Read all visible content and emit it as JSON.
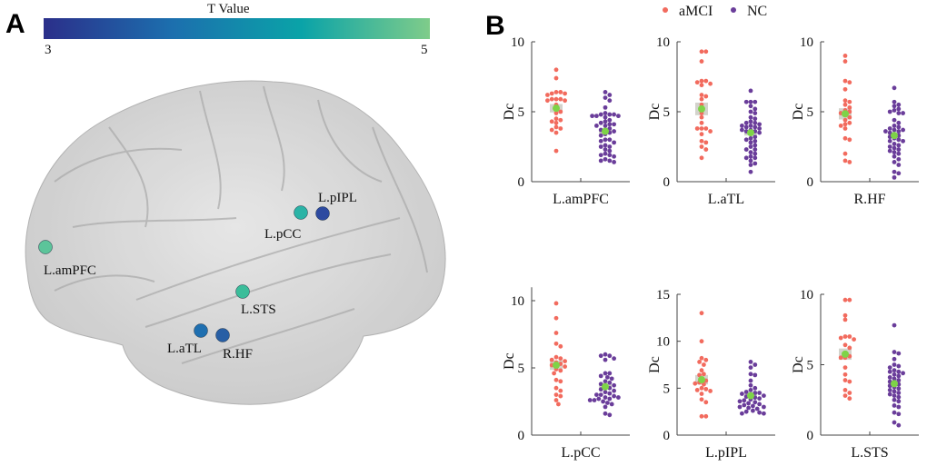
{
  "panel_a": {
    "label": "A",
    "colorbar": {
      "title": "T Value",
      "min_label": "3",
      "max_label": "5",
      "colors": [
        "#2b2f8a",
        "#1c6fae",
        "#0aa3a8",
        "#7fcc8a"
      ]
    },
    "nodes": [
      {
        "name": "L.amPFC",
        "t": 4.6,
        "color": "#5cc49a"
      },
      {
        "name": "L.pCC",
        "t": 4.4,
        "color": "#2bb3a6"
      },
      {
        "name": "L.pIPL",
        "t": 3.3,
        "color": "#2d4aa0"
      },
      {
        "name": "L.STS",
        "t": 4.5,
        "color": "#3bbd9a"
      },
      {
        "name": "L.aTL",
        "t": 3.7,
        "color": "#1f6fb0"
      },
      {
        "name": "R.HF",
        "t": 3.6,
        "color": "#285fa5"
      }
    ]
  },
  "panel_b": {
    "label": "B"
  },
  "chart_data": {
    "type": "scatter",
    "legend": {
      "placement": "top",
      "entries": [
        {
          "name": "aMCI",
          "color": "#f26b5e"
        },
        {
          "name": "NC",
          "color": "#6a3d9a"
        }
      ]
    },
    "mean_color": "#7ed348",
    "se_color": "#d3d3cc",
    "ylabel": "Dc",
    "panels": [
      {
        "xlabel": "L.amPFC",
        "ylim": [
          0,
          10
        ],
        "yticks": [
          0,
          5,
          10
        ],
        "aMCI": {
          "mean": 5.25,
          "se": 0.3,
          "values": [
            8.0,
            7.4,
            6.4,
            6.4,
            6.3,
            6.3,
            6.2,
            5.9,
            5.9,
            5.9,
            5.8,
            5.8,
            5.5,
            5.2,
            5.0,
            4.9,
            4.5,
            4.4,
            4.3,
            4.2,
            3.9,
            3.8,
            3.7,
            3.5,
            2.2
          ]
        },
        "NC": {
          "mean": 3.6,
          "se": 0.2,
          "values": [
            6.4,
            6.2,
            6.0,
            5.8,
            5.3,
            4.9,
            4.8,
            4.8,
            4.8,
            4.7,
            4.7,
            4.7,
            4.6,
            4.4,
            4.3,
            4.2,
            4.1,
            4.1,
            4.0,
            4.0,
            3.8,
            3.7,
            3.7,
            3.6,
            3.5,
            3.4,
            3.3,
            3.0,
            3.0,
            2.9,
            2.8,
            2.6,
            2.5,
            2.5,
            2.3,
            2.2,
            2.0,
            1.9,
            1.9,
            1.8,
            1.6,
            1.5,
            1.5,
            1.4
          ]
        }
      },
      {
        "xlabel": "L.aTL",
        "ylim": [
          0,
          10
        ],
        "yticks": [
          0,
          5,
          10
        ],
        "aMCI": {
          "mean": 5.2,
          "se": 0.45,
          "values": [
            9.3,
            9.3,
            8.6,
            7.2,
            7.2,
            7.1,
            7.0,
            6.9,
            6.2,
            6.1,
            5.9,
            5.5,
            4.9,
            4.6,
            4.2,
            3.8,
            3.8,
            3.8,
            3.6,
            3.4,
            2.9,
            2.8,
            2.5,
            2.3,
            1.7
          ]
        },
        "NC": {
          "mean": 3.5,
          "se": 0.2,
          "values": [
            6.5,
            5.7,
            5.7,
            5.7,
            5.4,
            5.2,
            5.0,
            4.9,
            4.6,
            4.5,
            4.3,
            4.2,
            4.2,
            4.1,
            4.0,
            4.0,
            3.9,
            3.9,
            3.8,
            3.7,
            3.7,
            3.6,
            3.6,
            3.5,
            3.4,
            3.2,
            3.1,
            3.0,
            2.9,
            2.8,
            2.6,
            2.5,
            2.3,
            2.3,
            2.1,
            2.0,
            1.8,
            1.7,
            1.7,
            1.5,
            1.3,
            1.2,
            0.7
          ]
        }
      },
      {
        "xlabel": "R.HF",
        "ylim": [
          0,
          10
        ],
        "yticks": [
          0,
          5,
          10
        ],
        "aMCI": {
          "mean": 4.85,
          "se": 0.4,
          "values": [
            9.0,
            8.6,
            7.2,
            7.1,
            6.6,
            5.8,
            5.7,
            5.5,
            5.3,
            5.1,
            5.0,
            4.9,
            4.8,
            4.6,
            4.4,
            4.2,
            4.1,
            4.0,
            3.8,
            3.1,
            3.0,
            2.0,
            1.5,
            1.4
          ]
        },
        "NC": {
          "mean": 3.3,
          "se": 0.2,
          "values": [
            6.7,
            5.7,
            5.5,
            5.4,
            5.2,
            5.1,
            5.0,
            4.9,
            4.9,
            4.4,
            4.2,
            4.0,
            3.9,
            3.8,
            3.7,
            3.7,
            3.6,
            3.6,
            3.5,
            3.4,
            3.3,
            3.2,
            3.1,
            3.0,
            2.9,
            2.9,
            2.7,
            2.6,
            2.5,
            2.4,
            2.3,
            2.2,
            2.1,
            2.0,
            1.8,
            1.6,
            1.4,
            1.2,
            0.7,
            0.6,
            0.3
          ]
        }
      },
      {
        "xlabel": "L.pCC",
        "ylim": [
          0,
          11
        ],
        "yticks": [
          0,
          5,
          10
        ],
        "aMCI": {
          "mean": 5.2,
          "se": 0.35,
          "values": [
            9.8,
            8.7,
            7.6,
            6.8,
            6.6,
            5.8,
            5.7,
            5.6,
            5.5,
            5.4,
            5.3,
            5.2,
            5.1,
            4.9,
            4.8,
            4.6,
            4.1,
            4.0,
            3.5,
            3.3,
            3.0,
            2.9,
            2.6,
            2.3
          ]
        },
        "NC": {
          "mean": 3.6,
          "se": 0.2,
          "values": [
            6.0,
            5.9,
            5.9,
            5.7,
            5.6,
            4.6,
            4.6,
            4.4,
            4.3,
            4.2,
            4.0,
            3.9,
            3.8,
            3.7,
            3.6,
            3.5,
            3.4,
            3.3,
            3.2,
            3.1,
            3.0,
            3.0,
            2.9,
            2.8,
            2.8,
            2.7,
            2.7,
            2.6,
            2.6,
            2.5,
            2.4,
            2.3,
            2.1,
            1.6,
            1.5
          ]
        }
      },
      {
        "xlabel": "L.pIPL",
        "ylim": [
          0,
          15
        ],
        "yticks": [
          0,
          5,
          10,
          15
        ],
        "aMCI": {
          "mean": 5.9,
          "se": 0.5,
          "values": [
            13.0,
            10.0,
            8.2,
            8.0,
            7.8,
            7.5,
            6.9,
            6.5,
            6.4,
            6.0,
            5.8,
            5.6,
            5.5,
            5.4,
            5.0,
            4.9,
            4.8,
            4.7,
            4.4,
            3.8,
            3.5,
            2.0,
            2.0
          ]
        },
        "NC": {
          "mean": 4.2,
          "se": 0.25,
          "values": [
            7.8,
            7.5,
            7.2,
            6.5,
            6.4,
            5.8,
            5.3,
            5.0,
            4.8,
            4.6,
            4.5,
            4.5,
            4.4,
            4.3,
            4.2,
            4.1,
            4.0,
            3.9,
            3.8,
            3.7,
            3.6,
            3.5,
            3.4,
            3.3,
            3.2,
            3.1,
            3.0,
            3.0,
            2.9,
            2.8,
            2.6,
            2.5,
            2.4,
            2.3,
            2.3
          ]
        }
      },
      {
        "xlabel": "L.STS",
        "ylim": [
          0,
          10
        ],
        "yticks": [
          0,
          5,
          10
        ],
        "aMCI": {
          "mean": 5.75,
          "se": 0.4,
          "values": [
            9.6,
            9.6,
            8.5,
            8.2,
            7.0,
            7.0,
            6.9,
            6.8,
            6.4,
            6.2,
            5.8,
            5.6,
            5.5,
            5.5,
            4.8,
            4.3,
            3.9,
            3.8,
            3.2,
            3.0,
            2.8,
            2.6
          ]
        },
        "NC": {
          "mean": 3.65,
          "se": 0.2,
          "values": [
            7.8,
            5.9,
            5.8,
            5.4,
            5.0,
            4.9,
            4.8,
            4.6,
            4.5,
            4.5,
            4.4,
            4.3,
            4.2,
            4.1,
            4.0,
            3.9,
            3.8,
            3.7,
            3.6,
            3.5,
            3.4,
            3.3,
            3.2,
            3.1,
            3.0,
            2.9,
            2.8,
            2.7,
            2.5,
            2.4,
            2.1,
            2.0,
            1.6,
            1.5,
            0.9,
            0.7
          ]
        }
      }
    ]
  }
}
